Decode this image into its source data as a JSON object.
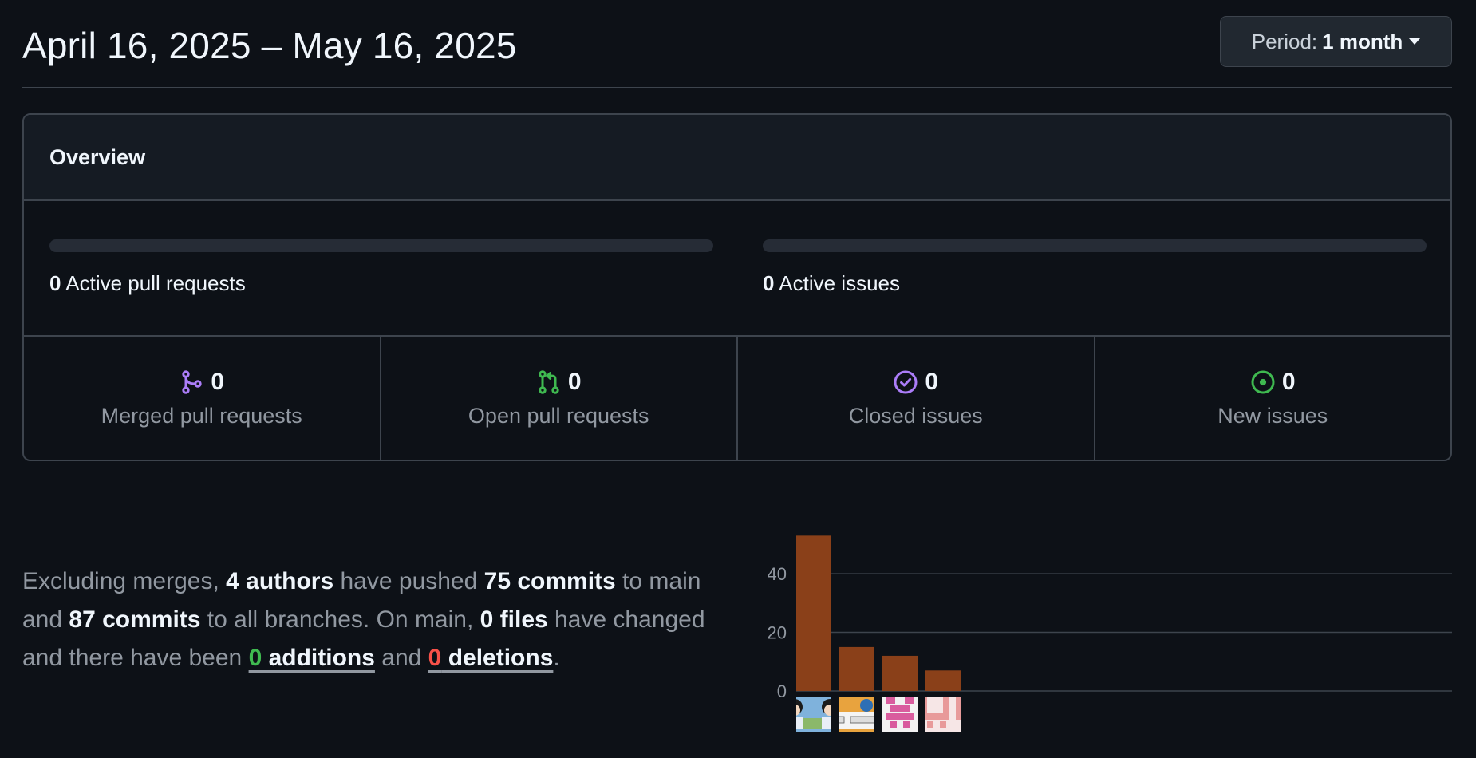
{
  "header": {
    "date_range": "April 16, 2025 – May 16, 2025",
    "period_label": "Period:",
    "period_value": "1 month"
  },
  "overview": {
    "title": "Overview",
    "active_prs": {
      "count": "0",
      "label": "Active pull requests",
      "fill_fraction": 0
    },
    "active_issues": {
      "count": "0",
      "label": "Active issues",
      "fill_fraction": 0
    },
    "stats": [
      {
        "icon": "merge-icon",
        "count": "0",
        "label": "Merged pull requests",
        "color": "#ab7df8"
      },
      {
        "icon": "pull-request-icon",
        "count": "0",
        "label": "Open pull requests",
        "color": "#3fb950"
      },
      {
        "icon": "issue-closed-icon",
        "count": "0",
        "label": "Closed issues",
        "color": "#ab7df8"
      },
      {
        "icon": "issue-opened-icon",
        "count": "0",
        "label": "New issues",
        "color": "#3fb950"
      }
    ]
  },
  "summary": {
    "p1": "Excluding merges, ",
    "authors": "4 authors",
    "p2": " have pushed ",
    "commits_main": "75 commits",
    "p3": " to main and ",
    "commits_all": "87 commits",
    "p4": " to all branches. On main, ",
    "files": "0 files",
    "p5": " have changed and there have been ",
    "additions_num": "0",
    "additions_word": " additions",
    "p6": " and ",
    "deletions_num": "0",
    "deletions_word": " deletions",
    "p7": "."
  },
  "colors": {
    "bar": "#8a4019",
    "grid": "#3d444d",
    "tick": "#9198a1"
  },
  "chart_data": {
    "type": "bar",
    "categories": [
      "author-1",
      "author-2",
      "author-3",
      "author-4"
    ],
    "values": [
      53,
      15,
      12,
      7
    ],
    "yticks": [
      0,
      20,
      40
    ],
    "ylim": [
      0,
      55
    ],
    "title": "",
    "xlabel": "",
    "ylabel": ""
  }
}
